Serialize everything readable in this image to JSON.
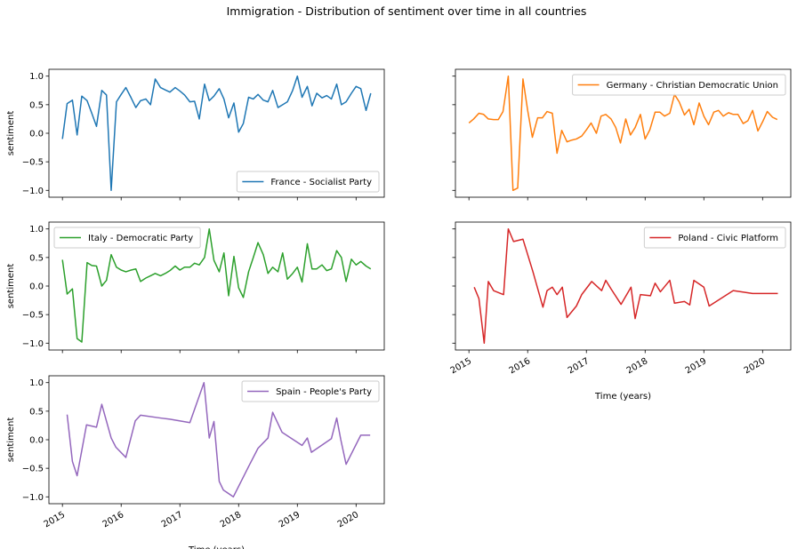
{
  "title": "Immigration - Distribution of sentiment over time in all countries",
  "chart_data": [
    {
      "type": "line",
      "ylabel": "sentiment",
      "legend": "lower right",
      "xticklabels": false,
      "yticklabels": true,
      "xlim": [
        2014.77,
        2020.48
      ],
      "xticks": [
        2015,
        2016,
        2017,
        2018,
        2019,
        2020
      ],
      "ylim": [
        -1.12,
        1.12
      ],
      "yticks": [
        {
          "value": -1,
          "label": "−1.0"
        },
        {
          "value": -0.5,
          "label": "−0.5"
        },
        {
          "value": 0,
          "label": "0.0"
        },
        {
          "value": 0.5,
          "label": "0.5"
        },
        {
          "value": 1,
          "label": "1.0"
        }
      ],
      "x": [
        2015,
        2015.08,
        2015.17,
        2015.25,
        2015.33,
        2015.42,
        2015.5,
        2015.58,
        2015.67,
        2015.75,
        2015.83,
        2015.92,
        2016,
        2016.08,
        2016.17,
        2016.25,
        2016.33,
        2016.42,
        2016.5,
        2016.58,
        2016.67,
        2016.75,
        2016.83,
        2016.92,
        2017,
        2017.08,
        2017.17,
        2017.25,
        2017.33,
        2017.42,
        2017.5,
        2017.58,
        2017.67,
        2017.75,
        2017.83,
        2017.92,
        2018,
        2018.08,
        2018.17,
        2018.25,
        2018.33,
        2018.42,
        2018.5,
        2018.58,
        2018.67,
        2018.75,
        2018.83,
        2018.92,
        2019,
        2019.08,
        2019.17,
        2019.25,
        2019.33,
        2019.42,
        2019.5,
        2019.58,
        2019.67,
        2019.75,
        2019.83,
        2019.92,
        2020,
        2020.08,
        2020.17,
        2020.25
      ],
      "series": [
        {
          "name": "France - Socialist Party",
          "color": "#1f77b4",
          "values": [
            -0.1,
            0.52,
            0.58,
            -0.03,
            0.65,
            0.57,
            0.35,
            0.12,
            0.75,
            0.67,
            -1.0,
            0.55,
            0.68,
            0.8,
            0.62,
            0.45,
            0.57,
            0.6,
            0.5,
            0.95,
            0.8,
            0.76,
            0.72,
            0.8,
            0.74,
            0.67,
            0.55,
            0.56,
            0.25,
            0.86,
            0.57,
            0.65,
            0.78,
            0.6,
            0.27,
            0.53,
            0.02,
            0.17,
            0.63,
            0.6,
            0.68,
            0.58,
            0.55,
            0.75,
            0.45,
            0.5,
            0.55,
            0.75,
            1.0,
            0.63,
            0.82,
            0.48,
            0.7,
            0.62,
            0.66,
            0.6,
            0.86,
            0.5,
            0.55,
            0.7,
            0.82,
            0.78,
            0.4,
            0.7
          ]
        }
      ]
    },
    {
      "type": "line",
      "legend": "upper right",
      "xticklabels": false,
      "yticklabels": false,
      "xlim": [
        2014.77,
        2020.48
      ],
      "xticks": [
        2015,
        2016,
        2017,
        2018,
        2019,
        2020
      ],
      "ylim": [
        -1.12,
        1.12
      ],
      "yticks": [
        -1,
        -0.5,
        0,
        0.5,
        1
      ],
      "x": [
        2015,
        2015.08,
        2015.17,
        2015.25,
        2015.33,
        2015.42,
        2015.5,
        2015.58,
        2015.67,
        2015.75,
        2015.83,
        2015.92,
        2016,
        2016.08,
        2016.17,
        2016.25,
        2016.33,
        2016.42,
        2016.5,
        2016.58,
        2016.67,
        2016.75,
        2016.83,
        2016.92,
        2017,
        2017.08,
        2017.17,
        2017.25,
        2017.33,
        2017.42,
        2017.5,
        2017.58,
        2017.67,
        2017.75,
        2017.83,
        2017.92,
        2018,
        2018.08,
        2018.17,
        2018.25,
        2018.33,
        2018.42,
        2018.5,
        2018.58,
        2018.67,
        2018.75,
        2018.83,
        2018.92,
        2019,
        2019.08,
        2019.17,
        2019.25,
        2019.33,
        2019.42,
        2019.5,
        2019.58,
        2019.67,
        2019.75,
        2019.83,
        2019.92,
        2020,
        2020.08,
        2020.17,
        2020.25
      ],
      "series": [
        {
          "name": "Germany - Christian Democratic Union",
          "color": "#ff7f0e",
          "values": [
            0.18,
            0.25,
            0.35,
            0.33,
            0.25,
            0.24,
            0.24,
            0.38,
            1.0,
            -1.0,
            -0.96,
            0.95,
            0.4,
            -0.07,
            0.27,
            0.27,
            0.38,
            0.35,
            -0.35,
            0.05,
            -0.15,
            -0.12,
            -0.1,
            -0.05,
            0.06,
            0.18,
            0.0,
            0.3,
            0.33,
            0.25,
            0.1,
            -0.17,
            0.25,
            -0.03,
            0.1,
            0.33,
            -0.1,
            0.06,
            0.37,
            0.37,
            0.3,
            0.35,
            0.68,
            0.55,
            0.32,
            0.42,
            0.15,
            0.53,
            0.3,
            0.15,
            0.37,
            0.4,
            0.3,
            0.36,
            0.33,
            0.33,
            0.17,
            0.22,
            0.4,
            0.04,
            0.2,
            0.38,
            0.28,
            0.24
          ]
        }
      ]
    },
    {
      "type": "line",
      "ylabel": "sentiment",
      "legend": "upper left",
      "xticklabels": false,
      "yticklabels": true,
      "xlim": [
        2014.77,
        2020.48
      ],
      "xticks": [
        2015,
        2016,
        2017,
        2018,
        2019,
        2020
      ],
      "ylim": [
        -1.12,
        1.12
      ],
      "yticks": [
        {
          "value": -1,
          "label": "−1.0"
        },
        {
          "value": -0.5,
          "label": "−0.5"
        },
        {
          "value": 0,
          "label": "0.0"
        },
        {
          "value": 0.5,
          "label": "0.5"
        },
        {
          "value": 1,
          "label": "1.0"
        }
      ],
      "x": [
        2015,
        2015.08,
        2015.17,
        2015.25,
        2015.33,
        2015.42,
        2015.5,
        2015.58,
        2015.67,
        2015.75,
        2015.83,
        2015.92,
        2016,
        2016.08,
        2016.17,
        2016.25,
        2016.33,
        2016.42,
        2016.5,
        2016.58,
        2016.67,
        2016.75,
        2016.83,
        2016.92,
        2017,
        2017.08,
        2017.17,
        2017.25,
        2017.33,
        2017.42,
        2017.5,
        2017.58,
        2017.67,
        2017.75,
        2017.83,
        2017.92,
        2018,
        2018.08,
        2018.17,
        2018.25,
        2018.33,
        2018.42,
        2018.5,
        2018.58,
        2018.67,
        2018.75,
        2018.83,
        2018.92,
        2019,
        2019.08,
        2019.17,
        2019.25,
        2019.33,
        2019.42,
        2019.5,
        2019.58,
        2019.67,
        2019.75,
        2019.83,
        2019.92,
        2020,
        2020.08,
        2020.17,
        2020.25
      ],
      "series": [
        {
          "name": "Italy - Democratic Party",
          "color": "#2ca02c",
          "values": [
            0.46,
            -0.14,
            -0.05,
            -0.92,
            -0.98,
            0.41,
            0.36,
            0.35,
            0.0,
            0.1,
            0.55,
            0.33,
            0.28,
            0.25,
            0.28,
            0.3,
            0.08,
            0.14,
            0.18,
            0.22,
            0.18,
            0.22,
            0.27,
            0.35,
            0.28,
            0.33,
            0.33,
            0.4,
            0.37,
            0.5,
            1.0,
            0.45,
            0.25,
            0.58,
            -0.17,
            0.52,
            -0.03,
            -0.2,
            0.25,
            0.5,
            0.76,
            0.55,
            0.22,
            0.33,
            0.25,
            0.58,
            0.12,
            0.22,
            0.33,
            0.07,
            0.74,
            0.3,
            0.3,
            0.37,
            0.27,
            0.3,
            0.62,
            0.5,
            0.08,
            0.47,
            0.37,
            0.43,
            0.35,
            0.3
          ]
        }
      ]
    },
    {
      "type": "line",
      "xlabel": "Time (years)",
      "legend": "upper right",
      "xticklabels": true,
      "yticklabels": false,
      "xlim": [
        2014.77,
        2020.48
      ],
      "xticks": [
        2015,
        2016,
        2017,
        2018,
        2019,
        2020
      ],
      "ylim": [
        -1.12,
        1.12
      ],
      "yticks": [
        -1,
        -0.5,
        0,
        0.5,
        1
      ],
      "x": [
        2015.09,
        2015.17,
        2015.26,
        2015.33,
        2015.42,
        2015.59,
        2015.67,
        2015.76,
        2015.92,
        2016.09,
        2016.26,
        2016.33,
        2016.42,
        2016.5,
        2016.59,
        2016.67,
        2016.83,
        2016.92,
        2017.09,
        2017.26,
        2017.33,
        2017.42,
        2017.59,
        2017.76,
        2017.83,
        2017.92,
        2018.09,
        2018.17,
        2018.26,
        2018.42,
        2018.5,
        2018.67,
        2018.76,
        2018.83,
        2019.0,
        2019.09,
        2019.5,
        2019.83,
        2020.26
      ],
      "series": [
        {
          "name": "Poland - Civic Platform",
          "color": "#d62728",
          "values": [
            -0.02,
            -0.22,
            -1.0,
            0.08,
            -0.08,
            -0.15,
            1.0,
            0.78,
            0.82,
            0.25,
            -0.37,
            -0.08,
            -0.02,
            -0.15,
            -0.02,
            -0.55,
            -0.35,
            -0.15,
            0.08,
            -0.08,
            0.1,
            -0.05,
            -0.32,
            -0.02,
            -0.57,
            -0.15,
            -0.17,
            0.05,
            -0.1,
            0.1,
            -0.3,
            -0.27,
            -0.33,
            0.1,
            -0.02,
            -0.35,
            -0.08,
            -0.13,
            -0.13
          ]
        }
      ]
    },
    {
      "type": "line",
      "ylabel": "sentiment",
      "xlabel": "Time (years)",
      "legend": "upper right",
      "xticklabels": true,
      "yticklabels": true,
      "xlim": [
        2014.77,
        2020.48
      ],
      "xticks": [
        2015,
        2016,
        2017,
        2018,
        2019,
        2020
      ],
      "ylim": [
        -1.12,
        1.12
      ],
      "yticks": [
        {
          "value": -1,
          "label": "−1.0"
        },
        {
          "value": -0.5,
          "label": "−0.5"
        },
        {
          "value": 0,
          "label": "0.0"
        },
        {
          "value": 0.5,
          "label": "0.5"
        },
        {
          "value": 1,
          "label": "1.0"
        }
      ],
      "x": [
        2015.08,
        2015.17,
        2015.25,
        2015.41,
        2015.58,
        2015.67,
        2015.83,
        2015.91,
        2016.08,
        2016.24,
        2016.33,
        2016.67,
        2016.83,
        2017.17,
        2017.41,
        2017.5,
        2017.58,
        2017.67,
        2017.74,
        2017.91,
        2018.17,
        2018.33,
        2018.5,
        2018.58,
        2018.74,
        2019.08,
        2019.17,
        2019.24,
        2019.58,
        2019.67,
        2019.74,
        2019.83,
        2020.08,
        2020.24
      ],
      "series": [
        {
          "name": "Spain - People's Party",
          "color": "#9467bd",
          "values": [
            0.44,
            -0.38,
            -0.63,
            0.26,
            0.22,
            0.62,
            0.03,
            -0.13,
            -0.31,
            0.33,
            0.43,
            0.38,
            0.36,
            0.3,
            1.0,
            0.03,
            0.32,
            -0.73,
            -0.88,
            -1.0,
            -0.47,
            -0.15,
            0.03,
            0.48,
            0.13,
            -0.1,
            0.03,
            -0.22,
            0.02,
            0.38,
            0.0,
            -0.43,
            0.08,
            0.08
          ]
        }
      ]
    }
  ]
}
